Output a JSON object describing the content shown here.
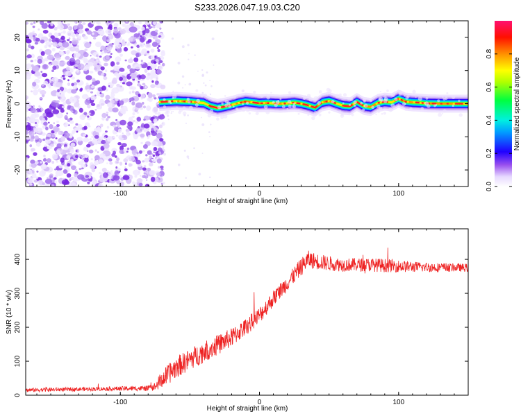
{
  "figure_title": "S233.2026.047.19.03.C20",
  "chart_data": [
    {
      "type": "heatmap",
      "title": "S233.2026.047.19.03.C20",
      "xlabel": "Height of straight line (km)",
      "ylabel": "Frequency (Hz)",
      "xlim": [
        -168,
        150
      ],
      "ylim": [
        -25,
        25
      ],
      "xticks": [
        -100,
        0,
        100
      ],
      "yticks": [
        -20,
        -10,
        0,
        10,
        20
      ],
      "xtick_labels": [
        "-100",
        "0",
        "100"
      ],
      "ytick_labels": [
        "-20",
        "-10",
        "0",
        "10",
        "20"
      ],
      "noise_region_x": [
        -168,
        -72
      ],
      "signal_start_x": -72,
      "ridge": {
        "x": [
          -72,
          -60,
          -50,
          -40,
          -35,
          -30,
          -25,
          -20,
          -15,
          -10,
          -5,
          0,
          5,
          10,
          15,
          20,
          25,
          30,
          35,
          40,
          45,
          50,
          55,
          60,
          65,
          70,
          75,
          80,
          85,
          90,
          95,
          100,
          105,
          110,
          115,
          120,
          130,
          140,
          150
        ],
        "frequency_hz": [
          0.5,
          0.8,
          0.6,
          0.2,
          -0.8,
          -1.3,
          -0.9,
          -0.4,
          0.2,
          0.6,
          0.4,
          0.1,
          0.2,
          0.1,
          0.0,
          0.1,
          0.3,
          0.0,
          -0.5,
          -1.2,
          0.4,
          0.8,
          0.1,
          -0.6,
          -0.8,
          0.5,
          -0.7,
          -1.0,
          0.2,
          0.6,
          0.4,
          1.5,
          0.6,
          0.4,
          0.3,
          0.1,
          0.0,
          0.0,
          0.0
        ]
      },
      "colorbar": {
        "label": "Normalized spectral amplitude",
        "range": [
          0.0,
          1.0
        ],
        "ticks": [
          0.0,
          0.2,
          0.4,
          0.6,
          0.8
        ],
        "tick_labels": [
          "0.0",
          "0.2",
          "0.4",
          "0.6",
          "0.8"
        ],
        "colormap": [
          "#f4f0ff",
          "#b08cf0",
          "#7a22e6",
          "#0000ff",
          "#00e0f0",
          "#00ff00",
          "#ffff00",
          "#ff8000",
          "#ff0000",
          "#ff1060"
        ]
      }
    },
    {
      "type": "line",
      "xlabel": "Height of straight line (km)",
      "ylabel": "SNR (10 * v/v)",
      "xlim": [
        -168,
        150
      ],
      "ylim": [
        0,
        490
      ],
      "xticks": [
        -100,
        0,
        100
      ],
      "yticks": [
        0,
        100,
        200,
        300,
        400
      ],
      "xtick_labels": [
        "-100",
        "0",
        "100"
      ],
      "ytick_labels": [
        "0",
        "100",
        "200",
        "300",
        "400"
      ],
      "series": [
        {
          "name": "SNR",
          "color": "#ee2222",
          "x": [
            -168,
            -140,
            -110,
            -80,
            -75,
            -72,
            -66,
            -60,
            -50,
            -40,
            -30,
            -20,
            -10,
            0,
            10,
            20,
            30,
            35,
            40,
            50,
            60,
            70,
            80,
            90,
            100,
            110,
            120,
            130,
            140,
            150
          ],
          "y": [
            15,
            17,
            19,
            20,
            25,
            38,
            60,
            82,
            105,
            128,
            148,
            170,
            200,
            235,
            285,
            330,
            378,
            400,
            395,
            388,
            384,
            384,
            384,
            382,
            380,
            378,
            377,
            376,
            376,
            375
          ],
          "noise_amplitude": [
            6,
            6,
            6,
            8,
            12,
            22,
            30,
            32,
            32,
            32,
            30,
            28,
            26,
            25,
            24,
            24,
            26,
            26,
            24,
            22,
            20,
            20,
            20,
            20,
            18,
            16,
            14,
            14,
            12,
            12
          ]
        }
      ]
    }
  ]
}
